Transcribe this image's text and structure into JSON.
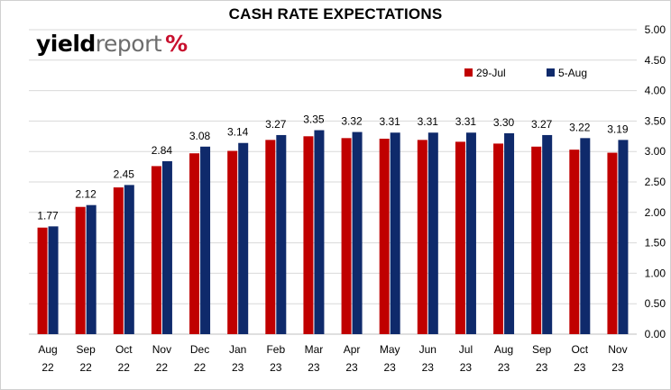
{
  "chart_data": {
    "type": "bar",
    "title": "CASH RATE EXPECTATIONS",
    "logo_text": [
      "yield",
      "report",
      "%"
    ],
    "categories": [
      [
        "Aug",
        "22"
      ],
      [
        "Sep",
        "22"
      ],
      [
        "Oct",
        "22"
      ],
      [
        "Nov",
        "22"
      ],
      [
        "Dec",
        "22"
      ],
      [
        "Jan",
        "23"
      ],
      [
        "Feb",
        "23"
      ],
      [
        "Mar",
        "23"
      ],
      [
        "Apr",
        "23"
      ],
      [
        "May",
        "23"
      ],
      [
        "Jun",
        "23"
      ],
      [
        "Jul",
        "23"
      ],
      [
        "Aug",
        "23"
      ],
      [
        "Sep",
        "23"
      ],
      [
        "Oct",
        "23"
      ],
      [
        "Nov",
        "23"
      ]
    ],
    "series": [
      {
        "name": "29-Jul",
        "color": "#c00000",
        "values": [
          1.75,
          2.09,
          2.41,
          2.76,
          2.97,
          3.01,
          3.19,
          3.25,
          3.22,
          3.21,
          3.19,
          3.16,
          3.13,
          3.08,
          3.03,
          2.98
        ]
      },
      {
        "name": "5-Aug",
        "color": "#0f2a6b",
        "values": [
          1.77,
          2.12,
          2.45,
          2.84,
          3.08,
          3.14,
          3.27,
          3.35,
          3.32,
          3.31,
          3.31,
          3.31,
          3.3,
          3.27,
          3.22,
          3.19
        ]
      }
    ],
    "data_labels": [
      "1.77",
      "2.12",
      "2.45",
      "2.84",
      "3.08",
      "3.14",
      "3.27",
      "3.35",
      "3.32",
      "3.31",
      "3.31",
      "3.31",
      "3.30",
      "3.27",
      "3.22",
      "3.19"
    ],
    "ylim": [
      0,
      5
    ],
    "yticks": [
      "0.00",
      "0.50",
      "1.00",
      "1.50",
      "2.00",
      "2.50",
      "3.00",
      "3.50",
      "4.00",
      "4.50",
      "5.00"
    ],
    "y_axis_side": "right",
    "grid": true,
    "legend_position": "top-right"
  }
}
